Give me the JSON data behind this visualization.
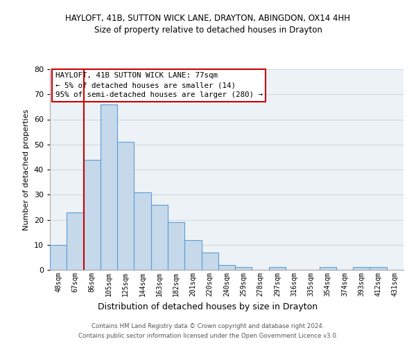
{
  "title_line1": "HAYLOFT, 41B, SUTTON WICK LANE, DRAYTON, ABINGDON, OX14 4HH",
  "title_line2": "Size of property relative to detached houses in Drayton",
  "xlabel": "Distribution of detached houses by size in Drayton",
  "ylabel": "Number of detached properties",
  "bar_labels": [
    "48sqm",
    "67sqm",
    "86sqm",
    "105sqm",
    "125sqm",
    "144sqm",
    "163sqm",
    "182sqm",
    "201sqm",
    "220sqm",
    "240sqm",
    "259sqm",
    "278sqm",
    "297sqm",
    "316sqm",
    "335sqm",
    "354sqm",
    "374sqm",
    "393sqm",
    "412sqm",
    "431sqm"
  ],
  "bar_values": [
    10,
    23,
    44,
    66,
    51,
    31,
    26,
    19,
    12,
    7,
    2,
    1,
    0,
    1,
    0,
    0,
    1,
    0,
    1,
    1,
    0
  ],
  "bar_color": "#c5d9ea",
  "bar_edge_color": "#5b9bd5",
  "vline_color": "#cc0000",
  "ylim": [
    0,
    80
  ],
  "yticks": [
    0,
    10,
    20,
    30,
    40,
    50,
    60,
    70,
    80
  ],
  "annotation_title": "HAYLOFT, 41B SUTTON WICK LANE: 77sqm",
  "annotation_line2": "← 5% of detached houses are smaller (14)",
  "annotation_line3": "95% of semi-detached houses are larger (280) →",
  "annotation_box_color": "#ffffff",
  "annotation_box_edge": "#cc0000",
  "footer_line1": "Contains HM Land Registry data © Crown copyright and database right 2024.",
  "footer_line2": "Contains public sector information licensed under the Open Government Licence v3.0.",
  "grid_color": "#d0d8e0",
  "background_color": "#edf2f7"
}
